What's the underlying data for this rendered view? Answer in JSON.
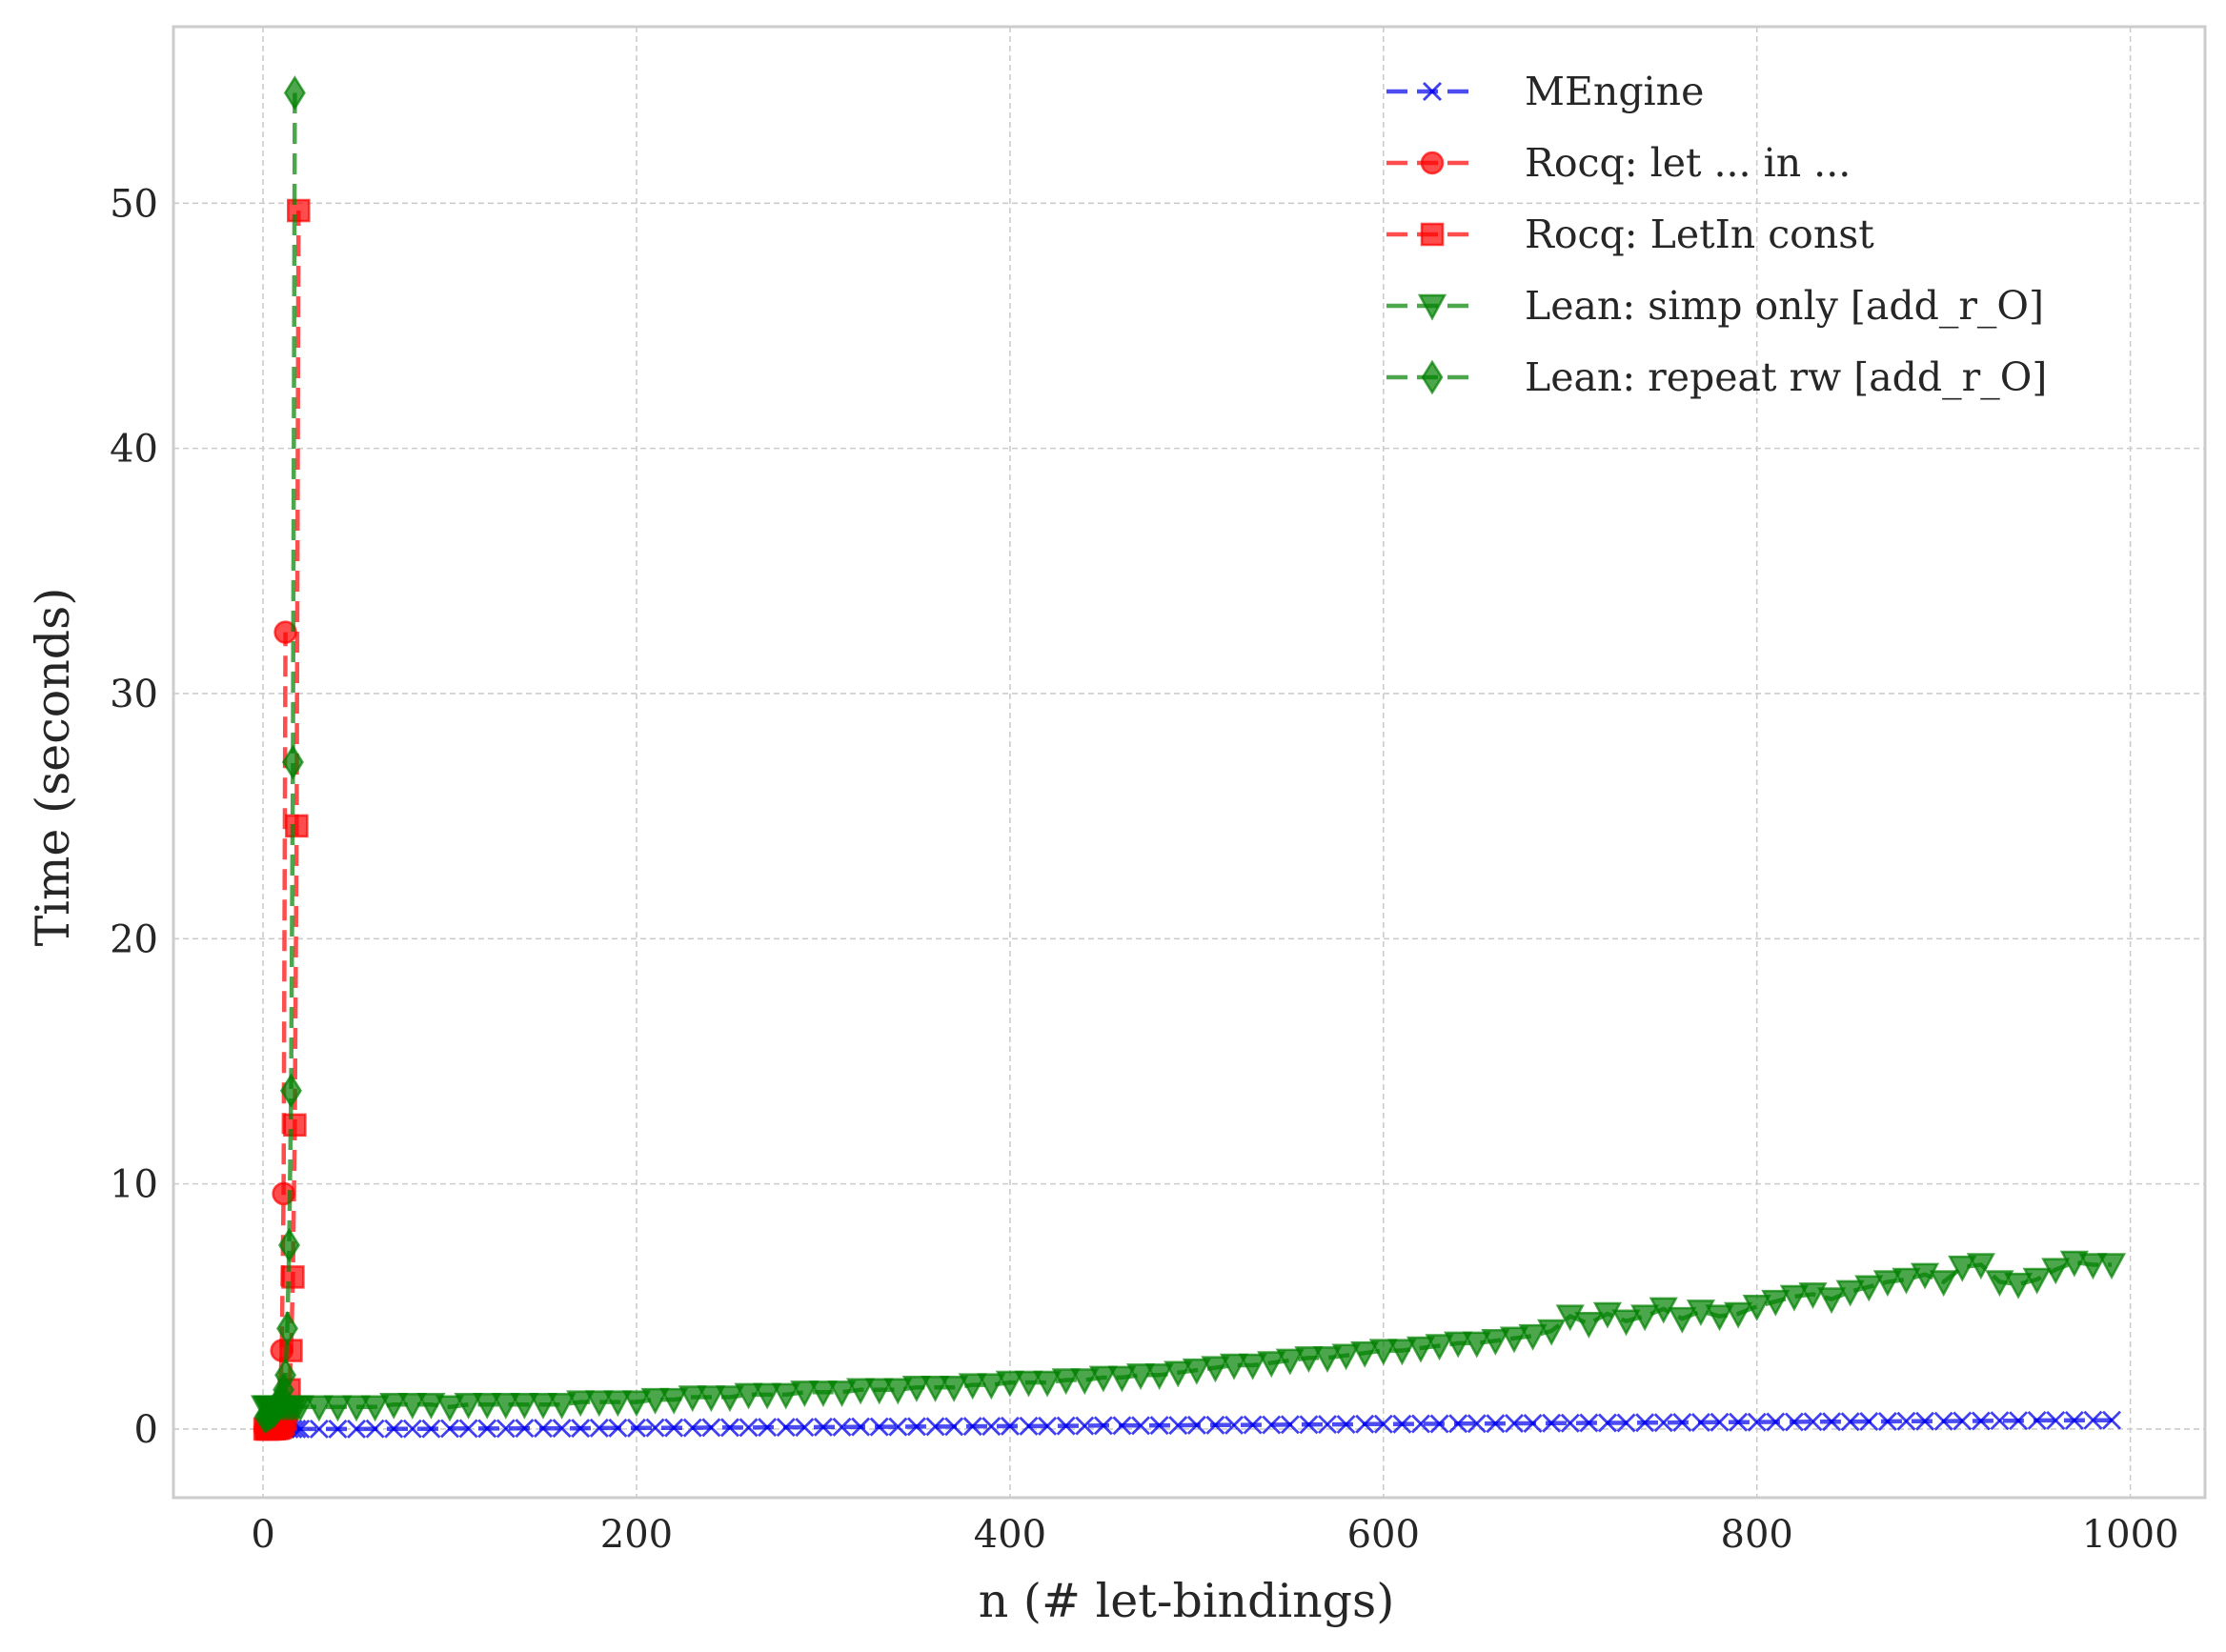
{
  "chart_data": {
    "type": "line",
    "title": "",
    "xlabel": "n (# let-bindings)",
    "ylabel": "Time (seconds)",
    "xlim": [
      -48,
      1040
    ],
    "ylim": [
      -2.8,
      57.2
    ],
    "xticks": [
      0,
      200,
      400,
      600,
      800,
      1000
    ],
    "yticks": [
      0,
      10,
      20,
      30,
      40,
      50
    ],
    "grid": true,
    "legend_position": "top-right",
    "series": [
      {
        "name": "MEngine",
        "color": "#0000ee",
        "linestyle": "dashed",
        "marker": "x",
        "x": [
          1,
          2,
          3,
          4,
          5,
          6,
          7,
          8,
          10,
          12,
          14,
          16,
          18,
          20,
          30,
          40,
          50,
          60,
          70,
          80,
          90,
          100,
          110,
          120,
          130,
          140,
          150,
          160,
          170,
          180,
          190,
          200,
          210,
          220,
          230,
          240,
          250,
          260,
          270,
          280,
          290,
          300,
          310,
          320,
          330,
          340,
          350,
          360,
          370,
          380,
          390,
          400,
          410,
          420,
          430,
          440,
          450,
          460,
          470,
          480,
          490,
          500,
          510,
          520,
          530,
          540,
          550,
          560,
          570,
          580,
          590,
          600,
          610,
          620,
          630,
          640,
          650,
          660,
          670,
          680,
          690,
          700,
          710,
          720,
          730,
          740,
          750,
          760,
          770,
          780,
          790,
          800,
          810,
          820,
          830,
          840,
          850,
          860,
          870,
          880,
          890,
          900,
          910,
          920,
          930,
          940,
          950,
          960,
          970,
          980,
          990
        ],
        "y": [
          0.0,
          0.0,
          0.0,
          0.0,
          0.0,
          0.0,
          0.0,
          0.0,
          0.0,
          0.0,
          0.0,
          0.0,
          0.0,
          0.0,
          0.0,
          0.0,
          0.0,
          0.01,
          0.01,
          0.01,
          0.01,
          0.02,
          0.02,
          0.02,
          0.02,
          0.03,
          0.03,
          0.03,
          0.03,
          0.04,
          0.04,
          0.04,
          0.05,
          0.05,
          0.05,
          0.06,
          0.06,
          0.06,
          0.07,
          0.07,
          0.07,
          0.08,
          0.08,
          0.09,
          0.09,
          0.09,
          0.1,
          0.1,
          0.1,
          0.11,
          0.11,
          0.12,
          0.12,
          0.12,
          0.13,
          0.13,
          0.14,
          0.14,
          0.14,
          0.15,
          0.15,
          0.16,
          0.16,
          0.16,
          0.17,
          0.17,
          0.18,
          0.18,
          0.19,
          0.19,
          0.2,
          0.2,
          0.2,
          0.21,
          0.21,
          0.22,
          0.22,
          0.22,
          0.23,
          0.23,
          0.24,
          0.24,
          0.25,
          0.25,
          0.25,
          0.26,
          0.26,
          0.27,
          0.27,
          0.28,
          0.28,
          0.28,
          0.29,
          0.29,
          0.3,
          0.3,
          0.3,
          0.31,
          0.31,
          0.32,
          0.32,
          0.32,
          0.33,
          0.33,
          0.34,
          0.34,
          0.35,
          0.35,
          0.35,
          0.36,
          0.36
        ]
      },
      {
        "name": "Rocq: let ... in ...",
        "color": "#ff0000",
        "linestyle": "dashed",
        "marker": "circle",
        "x": [
          1,
          2,
          3,
          4,
          5,
          6,
          7,
          8,
          9,
          10,
          11,
          12
        ],
        "y": [
          0.0,
          0.0,
          0.0,
          0.01,
          0.02,
          0.05,
          0.1,
          0.3,
          1.0,
          3.2,
          9.6,
          32.5
        ]
      },
      {
        "name": "Rocq: LetIn const",
        "color": "#ff0000",
        "linestyle": "dashed",
        "marker": "square",
        "x": [
          1,
          2,
          3,
          4,
          5,
          6,
          7,
          8,
          9,
          10,
          11,
          12,
          13,
          14,
          15,
          16,
          17,
          18,
          19
        ],
        "y": [
          0.0,
          0.0,
          0.0,
          0.0,
          0.01,
          0.01,
          0.02,
          0.03,
          0.05,
          0.1,
          0.2,
          0.4,
          0.8,
          1.6,
          3.2,
          6.2,
          12.4,
          24.6,
          49.7
        ]
      },
      {
        "name": "Lean: simp only [add_r_O]",
        "color": "#008000",
        "linestyle": "dashed",
        "marker": "triangle_down",
        "x": [
          1,
          2,
          3,
          4,
          5,
          6,
          7,
          8,
          10,
          12,
          14,
          16,
          18,
          20,
          30,
          40,
          50,
          60,
          70,
          80,
          90,
          100,
          110,
          120,
          130,
          140,
          150,
          160,
          170,
          180,
          190,
          200,
          210,
          220,
          230,
          240,
          250,
          260,
          270,
          280,
          290,
          300,
          310,
          320,
          330,
          340,
          350,
          360,
          370,
          380,
          390,
          400,
          410,
          420,
          430,
          440,
          450,
          460,
          470,
          480,
          490,
          500,
          510,
          520,
          530,
          540,
          550,
          560,
          570,
          580,
          590,
          600,
          610,
          620,
          630,
          640,
          650,
          660,
          670,
          680,
          690,
          700,
          710,
          720,
          730,
          740,
          750,
          760,
          770,
          780,
          790,
          800,
          810,
          820,
          830,
          840,
          850,
          860,
          870,
          880,
          890,
          900,
          910,
          920,
          930,
          940,
          950,
          960,
          970,
          980,
          990
        ],
        "y": [
          0.9,
          0.9,
          0.9,
          0.9,
          0.9,
          0.9,
          0.9,
          0.9,
          0.9,
          0.9,
          0.9,
          0.9,
          0.9,
          0.9,
          0.9,
          0.9,
          0.9,
          0.9,
          1.0,
          1.0,
          1.0,
          0.9,
          1.0,
          1.0,
          1.0,
          1.0,
          1.0,
          1.0,
          1.1,
          1.1,
          1.1,
          1.1,
          1.2,
          1.2,
          1.3,
          1.3,
          1.3,
          1.4,
          1.4,
          1.4,
          1.5,
          1.5,
          1.5,
          1.6,
          1.6,
          1.6,
          1.7,
          1.7,
          1.7,
          1.8,
          1.8,
          1.9,
          1.9,
          1.9,
          2.0,
          2.0,
          2.1,
          2.1,
          2.2,
          2.2,
          2.3,
          2.4,
          2.5,
          2.6,
          2.6,
          2.7,
          2.8,
          2.9,
          2.9,
          3.0,
          3.1,
          3.2,
          3.2,
          3.3,
          3.4,
          3.5,
          3.5,
          3.6,
          3.7,
          3.8,
          4.0,
          4.6,
          4.3,
          4.7,
          4.4,
          4.6,
          4.9,
          4.5,
          4.8,
          4.6,
          4.7,
          5.0,
          5.2,
          5.4,
          5.5,
          5.3,
          5.6,
          5.8,
          6.0,
          6.1,
          6.3,
          6.0,
          6.6,
          6.7,
          6.0,
          5.9,
          6.1,
          6.5,
          6.8,
          6.7,
          6.7
        ]
      },
      {
        "name": "Lean: repeat rw [add_r_O]",
        "color": "#008000",
        "linestyle": "dashed",
        "marker": "diamond",
        "x": [
          1,
          2,
          3,
          4,
          5,
          6,
          7,
          8,
          9,
          10,
          11,
          12,
          13,
          14,
          15,
          16,
          17
        ],
        "y": [
          0.5,
          0.55,
          0.6,
          0.65,
          0.7,
          0.75,
          0.85,
          0.95,
          1.1,
          1.3,
          1.6,
          2.2,
          4.1,
          7.5,
          13.8,
          27.2,
          54.5
        ]
      }
    ]
  }
}
